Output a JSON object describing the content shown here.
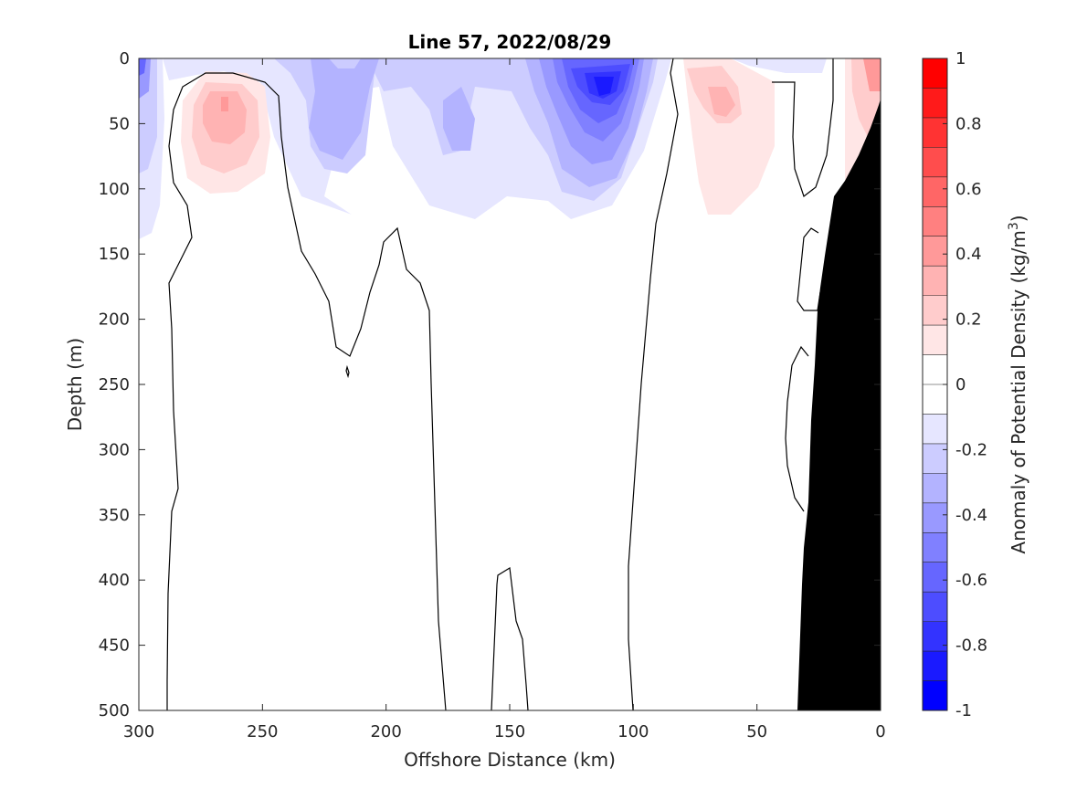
{
  "chart_data": {
    "type": "contour",
    "title": "Line 57, 2022/08/29",
    "xlabel": "Offshore Distance (km)",
    "ylabel": "Depth (m)",
    "xlim": [
      300,
      0
    ],
    "ylim": [
      500,
      0
    ],
    "x_ticks": [
      "300",
      "250",
      "200",
      "150",
      "100",
      "50",
      "0"
    ],
    "y_ticks": [
      "0",
      "50",
      "100",
      "150",
      "200",
      "250",
      "300",
      "350",
      "400",
      "450",
      "500"
    ],
    "colorbar": {
      "label_main": "Anomaly of Potential Density (kg/m",
      "label_sup": "3",
      "label_end": ")",
      "range": [
        -1,
        1
      ],
      "levels": 20,
      "ticks": [
        "1",
        "0.8",
        "0.6",
        "0.4",
        "0.2",
        "0",
        "-0.2",
        "-0.4",
        "-0.6",
        "-0.8",
        "-1"
      ],
      "colors_top_to_bottom": [
        "#ff0000",
        "#ff1a1a",
        "#ff3333",
        "#ff4d4d",
        "#ff6666",
        "#ff8080",
        "#ff9999",
        "#ffb3b3",
        "#ffcccc",
        "#ffe6e6",
        "#ffffff",
        "#ffffff",
        "#e6e6ff",
        "#ccccff",
        "#b3b3ff",
        "#9999ff",
        "#8080ff",
        "#6666ff",
        "#4d4dff",
        "#3333ff",
        "#1a1aff",
        "#0000ff"
      ]
    },
    "features": [
      {
        "name": "near-shore negative anomaly",
        "x": 300,
        "y": 10,
        "value": -0.6
      },
      {
        "name": "positive eddy",
        "x": 265,
        "y": 40,
        "value": 0.4
      },
      {
        "name": "negative lobe",
        "x": 215,
        "y": 60,
        "value": -0.4
      },
      {
        "name": "strong negative core",
        "x": 113,
        "y": 25,
        "value": -0.9
      },
      {
        "name": "positive anomaly",
        "x": 65,
        "y": 40,
        "value": 0.3
      },
      {
        "name": "coastal positive anomaly",
        "x": 3,
        "y": 20,
        "value": 0.4
      }
    ],
    "bathymetry": {
      "color": "#000000",
      "points": [
        [
          33,
          500
        ],
        [
          26,
          200
        ],
        [
          20,
          145
        ],
        [
          10,
          110
        ],
        [
          0,
          35
        ]
      ]
    }
  }
}
